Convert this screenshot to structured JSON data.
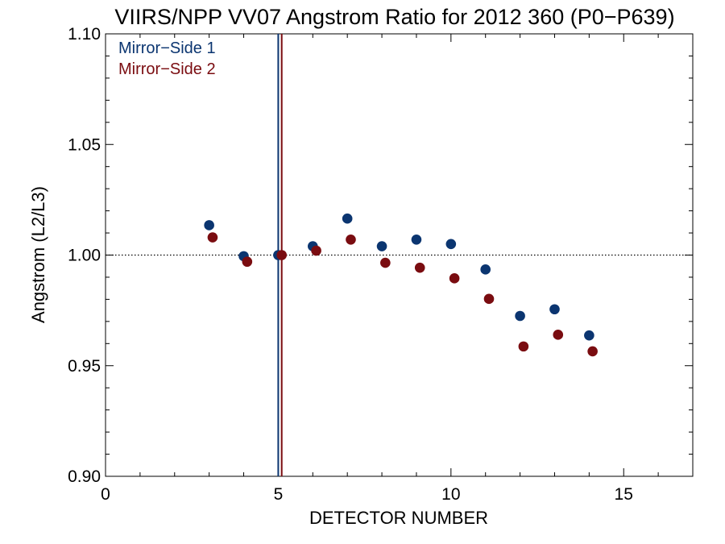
{
  "chart_data": {
    "type": "scatter",
    "title": "VIIRS/NPP VV07 Angstrom Ratio for 2012 360 (P0−P639)",
    "xlabel": "DETECTOR NUMBER",
    "ylabel": "Angstrom (L2/L3)",
    "xlim": [
      0,
      17
    ],
    "ylim": [
      0.9,
      1.1
    ],
    "x_ticks": [
      0,
      5,
      10,
      15
    ],
    "x_tick_labels": [
      "0",
      "5",
      "10",
      "15"
    ],
    "y_ticks": [
      0.9,
      0.95,
      1.0,
      1.05,
      1.1
    ],
    "y_tick_labels": [
      "0.90",
      "0.95",
      "1.00",
      "1.05",
      "1.10"
    ],
    "reference_line_y": 1.0,
    "legend_placement": "top-left",
    "series": [
      {
        "name": "Mirror−Side 1",
        "color": "#0b3570",
        "x": [
          3,
          4,
          5,
          6,
          7,
          8,
          9,
          10,
          11,
          12,
          13,
          14
        ],
        "y": [
          1.0135,
          0.9995,
          1.0,
          1.004,
          1.0165,
          1.004,
          1.007,
          1.005,
          0.9935,
          0.9725,
          0.9755,
          0.9637
        ],
        "vline_x": 5.0
      },
      {
        "name": "Mirror−Side 2",
        "color": "#7a0c10",
        "x": [
          3.1,
          4.1,
          5.1,
          6.1,
          7.1,
          8.1,
          9.1,
          10.1,
          11.1,
          12.1,
          13.1,
          14.1
        ],
        "y": [
          1.008,
          0.997,
          1.0,
          1.002,
          1.007,
          0.9965,
          0.9943,
          0.9895,
          0.9802,
          0.9587,
          0.964,
          0.9565
        ],
        "vline_x": 5.1
      }
    ]
  }
}
